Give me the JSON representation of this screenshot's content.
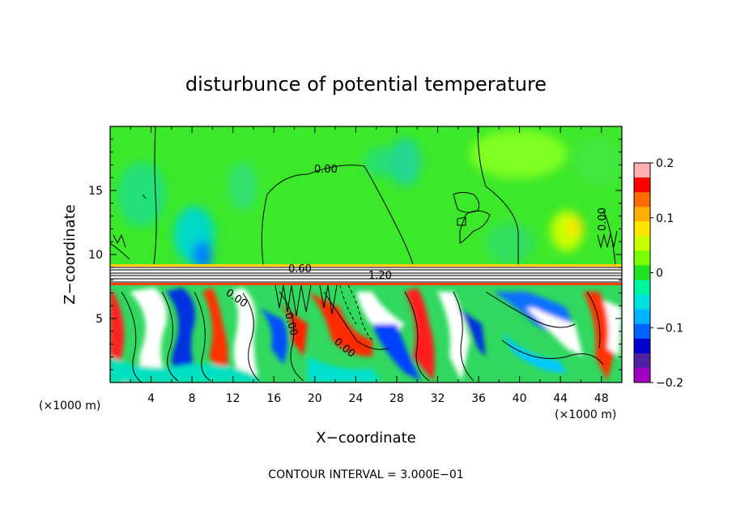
{
  "chart_data": {
    "type": "heatmap",
    "title": "disturbunce of potential temperature",
    "xlabel": "X−coordinate",
    "ylabel": "Z−coordinate",
    "x_unit": "(×1000 m)",
    "x_unit_right": "(×1000 m)",
    "footer": "CONTOUR INTERVAL = 3.000E−01",
    "xlim": [
      0,
      50
    ],
    "ylim": [
      0,
      20
    ],
    "x_ticks": [
      4,
      8,
      12,
      16,
      20,
      24,
      28,
      32,
      36,
      40,
      44,
      48
    ],
    "x_tick_labels": [
      "4",
      "8",
      "12",
      "16",
      "20",
      "24",
      "28",
      "32",
      "36",
      "40",
      "44",
      "48"
    ],
    "y_ticks": [
      5,
      10,
      15
    ],
    "y_tick_labels": [
      "5",
      "10",
      "15"
    ],
    "colorbar": {
      "range": [
        -0.2,
        0.2
      ],
      "ticks": [
        0.2,
        0.1,
        0,
        -0.1,
        -0.2
      ],
      "tick_labels": [
        "0.2",
        "0.1",
        "0",
        "−0.1",
        "−0.2"
      ],
      "colors": [
        "#ffb0b0",
        "#ff0000",
        "#ff6a00",
        "#ffae00",
        "#ffe600",
        "#c8ff00",
        "#78ff00",
        "#20e020",
        "#00f5a0",
        "#00e0e0",
        "#00b4ff",
        "#0064ff",
        "#0000d0",
        "#5020a0",
        "#a000c0"
      ]
    },
    "contour_interval": 0.3,
    "contour_labels": [
      {
        "text": "0.00",
        "x": 17.5,
        "z": 17.2
      },
      {
        "text": "0.60",
        "x": 15.5,
        "z": 9.0
      },
      {
        "text": "1.20",
        "x": 25.5,
        "z": 8.2
      },
      {
        "text": "0.00",
        "x": 10.8,
        "z": 7.2
      },
      {
        "text": "0.00",
        "x": 18.7,
        "z": 6.1
      },
      {
        "text": "0.00",
        "x": 23.2,
        "z": 3.3
      },
      {
        "text": "0.00",
        "x": 48.5,
        "z": 12.5
      }
    ],
    "field": {
      "upper_layer": {
        "z_range": [
          9,
          20
        ],
        "value_approx": 0.0,
        "notes": "near-zero values, slight negative patches near x=6-12 at z~10, slight positive near x=44-48 at z~12"
      },
      "stable_layer": {
        "z_range": [
          7.5,
          9
        ],
        "value_approx": "strong gradient, dense contours"
      },
      "lower_layer": {
        "z_range": [
          0,
          7.5
        ],
        "value_range": [
          -0.2,
          0.2
        ],
        "notes": "turbulent eddies with alternating positive and negative anomalies"
      }
    }
  }
}
